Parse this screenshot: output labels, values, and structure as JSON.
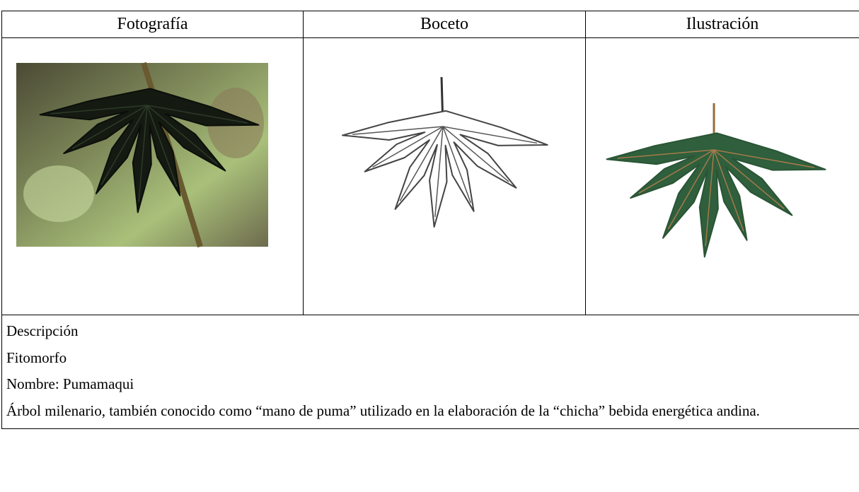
{
  "table": {
    "headers": [
      "Fotografía",
      "Boceto",
      "Ilustración"
    ],
    "description": [
      "Descripción",
      "Fitomorfo",
      "Nombre: Pumamaqui",
      "Árbol milenario, también conocido como “mano de puma” utilizado en la elaboración de la “chicha” bebida energética andina."
    ]
  }
}
